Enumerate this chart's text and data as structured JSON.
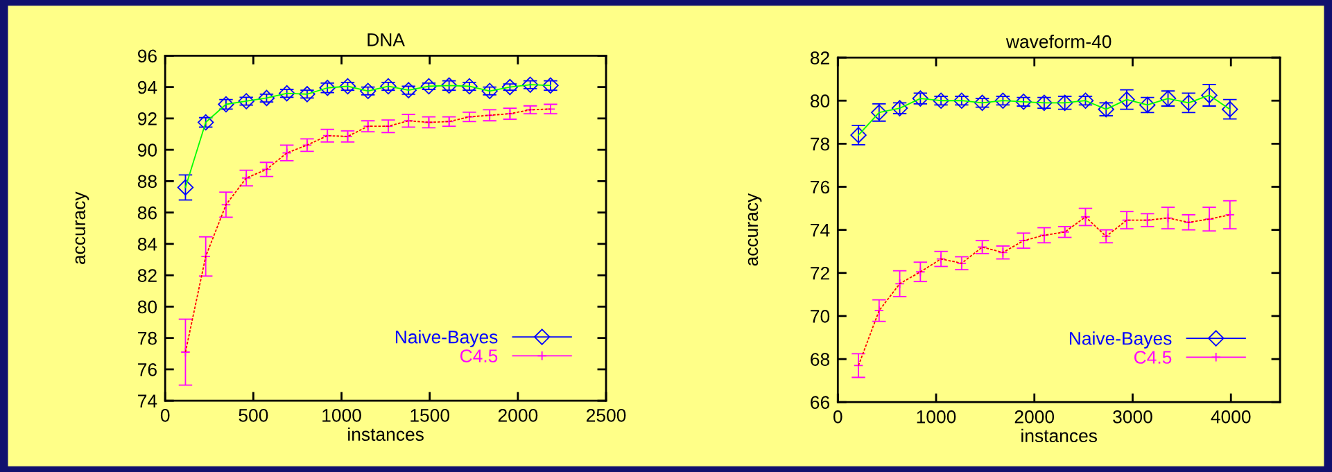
{
  "chart_data": [
    {
      "type": "line",
      "title": "DNA",
      "xlabel": "instances",
      "ylabel": "accuracy",
      "x": [
        115,
        230,
        345,
        460,
        575,
        690,
        805,
        920,
        1035,
        1150,
        1265,
        1380,
        1495,
        1610,
        1725,
        1840,
        1955,
        2070,
        2185
      ],
      "xlim": [
        0,
        2500
      ],
      "xticks": [
        0,
        500,
        1000,
        1500,
        2000,
        2500
      ],
      "ylim": [
        74,
        96
      ],
      "yticks": [
        74,
        76,
        78,
        80,
        82,
        84,
        86,
        88,
        90,
        92,
        94,
        96
      ],
      "grid": false,
      "legend": "bottom right",
      "series": [
        {
          "color": "#00ff00",
          "line_style": "solid",
          "values": [
            87.6,
            91.75,
            92.9,
            93.1,
            93.3,
            93.6,
            93.55,
            93.95,
            94.05,
            93.75,
            94.05,
            93.8,
            94.05,
            94.1,
            94.05,
            93.75,
            94.0,
            94.15,
            94.1
          ]
        },
        {
          "color": "#ff0000",
          "line_style": "dashed",
          "values": [
            77.1,
            83.2,
            86.5,
            88.2,
            88.75,
            89.8,
            90.3,
            90.9,
            90.85,
            91.5,
            91.5,
            91.85,
            91.75,
            91.8,
            92.1,
            92.2,
            92.3,
            92.55,
            92.6
          ]
        },
        {
          "type": "scatter",
          "name": "Naive-Bayes",
          "color": "#0000ff",
          "marker": "diamond",
          "values": [
            87.6,
            91.75,
            92.9,
            93.1,
            93.3,
            93.6,
            93.55,
            93.95,
            94.05,
            93.75,
            94.05,
            93.8,
            94.05,
            94.1,
            94.05,
            93.75,
            94.0,
            94.15,
            94.1
          ],
          "errors": [
            0.8,
            0.3,
            0.3,
            0.25,
            0.25,
            0.25,
            0.25,
            0.3,
            0.25,
            0.25,
            0.25,
            0.25,
            0.2,
            0.3,
            0.25,
            0.25,
            0.2,
            0.25,
            0.3
          ]
        },
        {
          "type": "scatter",
          "name": "C4.5",
          "color": "#ff00ff",
          "marker": "cross",
          "values": [
            77.1,
            83.2,
            86.5,
            88.2,
            88.75,
            89.8,
            90.3,
            90.9,
            90.85,
            91.5,
            91.5,
            91.85,
            91.75,
            91.8,
            92.1,
            92.2,
            92.3,
            92.55,
            92.6
          ],
          "errors": [
            2.1,
            1.25,
            0.8,
            0.5,
            0.45,
            0.5,
            0.4,
            0.4,
            0.35,
            0.35,
            0.4,
            0.4,
            0.35,
            0.3,
            0.3,
            0.35,
            0.35,
            0.25,
            0.3
          ]
        }
      ]
    },
    {
      "type": "line",
      "title": "waveform-40",
      "xlabel": "instances",
      "ylabel": "accuracy",
      "x": [
        210,
        420,
        630,
        840,
        1050,
        1260,
        1470,
        1680,
        1890,
        2100,
        2310,
        2520,
        2730,
        2940,
        3150,
        3360,
        3570,
        3780,
        3990
      ],
      "xlim": [
        0,
        4500
      ],
      "xticks": [
        0,
        1000,
        2000,
        3000,
        4000
      ],
      "ylim": [
        66,
        82
      ],
      "yticks": [
        66,
        68,
        70,
        72,
        74,
        76,
        78,
        80,
        82
      ],
      "grid": false,
      "legend": "bottom right",
      "series": [
        {
          "color": "#00ff00",
          "line_style": "solid",
          "values": [
            78.4,
            79.45,
            79.65,
            80.1,
            80.0,
            80.0,
            79.9,
            80.0,
            79.95,
            79.9,
            79.9,
            80.0,
            79.6,
            80.05,
            79.8,
            80.1,
            79.9,
            80.25,
            79.6
          ]
        },
        {
          "color": "#ff0000",
          "line_style": "dashed",
          "values": [
            67.7,
            70.25,
            71.5,
            72.05,
            72.65,
            72.45,
            73.2,
            72.95,
            73.5,
            73.75,
            73.9,
            74.6,
            73.7,
            74.45,
            74.45,
            74.55,
            74.35,
            74.5,
            74.7
          ]
        },
        {
          "type": "scatter",
          "name": "Naive-Bayes",
          "color": "#0000ff",
          "marker": "diamond",
          "values": [
            78.4,
            79.45,
            79.65,
            80.1,
            80.0,
            80.0,
            79.9,
            80.0,
            79.95,
            79.9,
            79.9,
            80.0,
            79.6,
            80.05,
            79.8,
            80.1,
            79.9,
            80.25,
            79.6
          ],
          "errors": [
            0.45,
            0.4,
            0.25,
            0.25,
            0.2,
            0.2,
            0.2,
            0.2,
            0.2,
            0.25,
            0.3,
            0.2,
            0.3,
            0.45,
            0.35,
            0.35,
            0.45,
            0.5,
            0.45
          ]
        },
        {
          "type": "scatter",
          "name": "C4.5",
          "color": "#ff00ff",
          "marker": "cross",
          "values": [
            67.7,
            70.25,
            71.5,
            72.05,
            72.65,
            72.45,
            73.2,
            72.95,
            73.5,
            73.75,
            73.9,
            74.6,
            73.7,
            74.45,
            74.45,
            74.55,
            74.35,
            74.5,
            74.7
          ],
          "errors": [
            0.55,
            0.5,
            0.6,
            0.45,
            0.35,
            0.3,
            0.3,
            0.3,
            0.35,
            0.35,
            0.25,
            0.4,
            0.3,
            0.4,
            0.3,
            0.5,
            0.35,
            0.55,
            0.65
          ]
        }
      ]
    }
  ]
}
